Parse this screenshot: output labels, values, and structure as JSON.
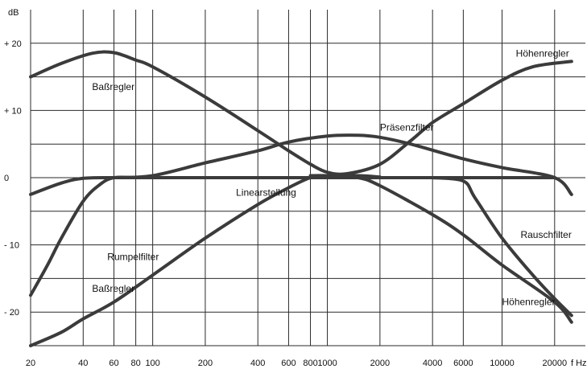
{
  "chart_data": {
    "type": "line",
    "xlabel": "f Hz",
    "ylabel": "dB",
    "x_scale": "log",
    "xlim": [
      20,
      30000
    ],
    "ylim": [
      -25,
      25
    ],
    "grid": true,
    "x_ticks": [
      20,
      40,
      60,
      80,
      100,
      200,
      400,
      600,
      800,
      1000,
      2000,
      4000,
      6000,
      10000,
      20000
    ],
    "x_tick_labels": [
      "20",
      "40",
      "60",
      "80",
      "100",
      "200",
      "400",
      "600",
      "800",
      "1000",
      "2000",
      "4000",
      "6000",
      "10000",
      "20000"
    ],
    "y_ticks": [
      20,
      10,
      0,
      -10,
      -20
    ],
    "y_tick_labels": [
      "+ 20",
      "+ 10",
      "0",
      "- 10",
      "- 20"
    ],
    "series": [
      {
        "name": "Baßregler",
        "points": [
          [
            20,
            15
          ],
          [
            30,
            17
          ],
          [
            45,
            18.5
          ],
          [
            60,
            18.6
          ],
          [
            80,
            17.5
          ],
          [
            100,
            16.5
          ],
          [
            200,
            12
          ],
          [
            400,
            7
          ],
          [
            600,
            4
          ],
          [
            800,
            2
          ],
          [
            1000,
            0.8
          ],
          [
            1300,
            0.6
          ],
          [
            2000,
            2
          ],
          [
            3000,
            5.5
          ],
          [
            4000,
            8.2
          ],
          [
            6000,
            11
          ],
          [
            10000,
            14.5
          ],
          [
            15000,
            16.5
          ],
          [
            25000,
            17.3
          ]
        ]
      },
      {
        "name": "Baßregler",
        "points": [
          [
            20,
            -25
          ],
          [
            30,
            -23
          ],
          [
            40,
            -21
          ],
          [
            60,
            -18.5
          ],
          [
            100,
            -14.5
          ],
          [
            200,
            -9
          ],
          [
            400,
            -4
          ],
          [
            600,
            -1.5
          ],
          [
            800,
            0
          ],
          [
            1000,
            0.2
          ],
          [
            1500,
            0.3
          ],
          [
            2000,
            0.1
          ]
        ]
      },
      {
        "name": "Höhenregler",
        "points": [
          [
            800,
            0.3
          ],
          [
            1000,
            0.3
          ],
          [
            1500,
            0
          ],
          [
            2000,
            -1.2
          ],
          [
            4000,
            -5.5
          ],
          [
            6000,
            -8.5
          ],
          [
            10000,
            -13
          ],
          [
            20000,
            -18.5
          ],
          [
            25000,
            -21.5
          ]
        ]
      },
      {
        "name": "Präsenzfilter",
        "points": [
          [
            60,
            0
          ],
          [
            100,
            0.3
          ],
          [
            200,
            2.2
          ],
          [
            400,
            4
          ],
          [
            600,
            5.3
          ],
          [
            1000,
            6.2
          ],
          [
            1500,
            6.3
          ],
          [
            2000,
            6
          ],
          [
            3000,
            5
          ],
          [
            6000,
            2.8
          ],
          [
            10000,
            1.5
          ],
          [
            20000,
            0
          ],
          [
            25000,
            -2.5
          ]
        ]
      },
      {
        "name": "Linearstellung",
        "points": [
          [
            20,
            -2.5
          ],
          [
            30,
            -0.8
          ],
          [
            40,
            -0.1
          ],
          [
            60,
            0
          ],
          [
            100,
            0
          ],
          [
            400,
            0
          ],
          [
            1000,
            0
          ],
          [
            4000,
            0
          ],
          [
            10000,
            0
          ],
          [
            15000,
            0
          ],
          [
            20000,
            0
          ]
        ]
      },
      {
        "name": "Rumpelfilter",
        "points": [
          [
            20,
            -17.5
          ],
          [
            25,
            -13
          ],
          [
            30,
            -9
          ],
          [
            40,
            -3.5
          ],
          [
            50,
            -1
          ],
          [
            60,
            0
          ],
          [
            80,
            0
          ],
          [
            100,
            0
          ]
        ]
      },
      {
        "name": "Rauschfilter",
        "points": [
          [
            4000,
            0
          ],
          [
            6000,
            -0.5
          ],
          [
            7000,
            -3
          ],
          [
            10000,
            -9
          ],
          [
            15000,
            -14.5
          ],
          [
            20000,
            -18
          ],
          [
            25000,
            -20.5
          ]
        ]
      }
    ],
    "annotations": [
      {
        "text": "Baßregler",
        "x": 45,
        "y": 13.5
      },
      {
        "text": "Höhenregler",
        "x": 12000,
        "y": 18.5
      },
      {
        "text": "Präsenzfilter",
        "x": 2000,
        "y": 7.5
      },
      {
        "text": "Linearstellung",
        "x": 300,
        "y": -2.2
      },
      {
        "text": "Rumpelfilter",
        "x": 55,
        "y": -11.8
      },
      {
        "text": "Baßregler",
        "x": 45,
        "y": -16.5
      },
      {
        "text": "Höhenregler",
        "x": 10000,
        "y": -18.5
      },
      {
        "text": "Rauschfilter",
        "x": 25000,
        "y": -8.5
      }
    ]
  }
}
